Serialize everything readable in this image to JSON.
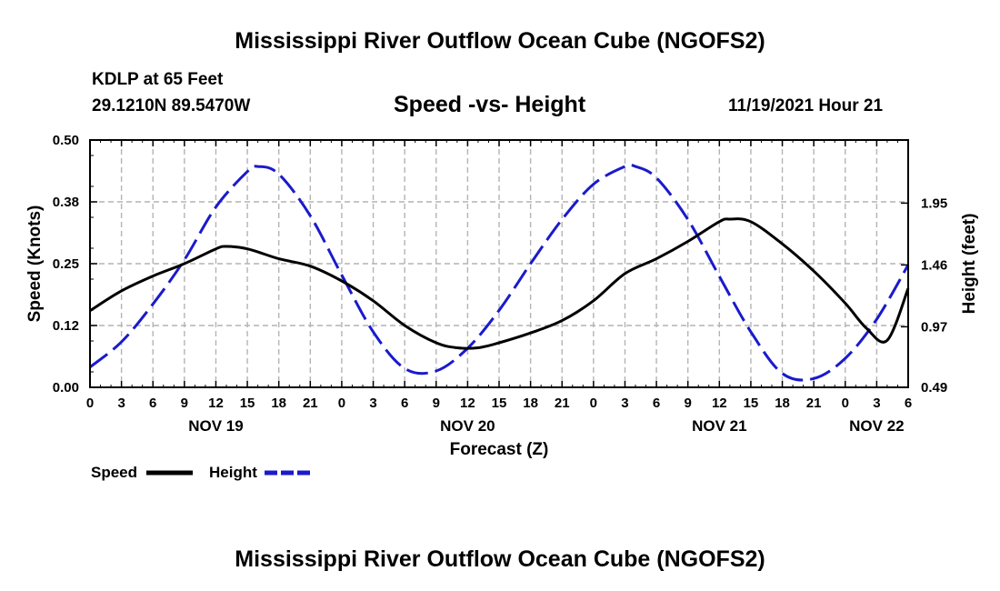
{
  "page": {
    "title": "Mississippi River Outflow Ocean Cube (NGOFS2)",
    "footer_title": "Mississippi River Outflow Ocean Cube (NGOFS2)",
    "station_line1": "KDLP at 65 Feet",
    "station_line2": "29.1210N  89.5470W",
    "subtitle": "Speed -vs- Height",
    "timestamp": "11/19/2021 Hour 21"
  },
  "chart_data": {
    "type": "line",
    "title": "Speed -vs- Height",
    "xlabel": "Forecast (Z)",
    "ylabel": "Speed (Knots)",
    "y2label": "Height (feet)",
    "x_range_hours": [
      0,
      78
    ],
    "ylim": [
      0,
      0.5
    ],
    "y2lim": [
      0.49,
      2.45
    ],
    "yticks": [
      "0.00",
      "0.12",
      "0.25",
      "0.38",
      "0.50"
    ],
    "y2ticks": [
      "0.49",
      "0.97",
      "1.46",
      "1.95"
    ],
    "xtick_labels": [
      "0",
      "3",
      "6",
      "9",
      "12",
      "15",
      "18",
      "21",
      "0",
      "3",
      "6",
      "9",
      "12",
      "15",
      "18",
      "21",
      "0",
      "3",
      "6",
      "9",
      "12",
      "15",
      "18",
      "21",
      "0",
      "3",
      "6"
    ],
    "date_labels": [
      {
        "label": "NOV 19",
        "hour": 12
      },
      {
        "label": "NOV 20",
        "hour": 36
      },
      {
        "label": "NOV 21",
        "hour": 60
      },
      {
        "label": "NOV 22",
        "hour": 75
      }
    ],
    "grid": true,
    "legend": [
      {
        "name": "Speed",
        "color": "#000000",
        "style": "solid"
      },
      {
        "name": "Height",
        "color": "#1a1acc",
        "style": "dashed"
      }
    ],
    "series": [
      {
        "name": "Speed",
        "axis": "left",
        "units": "knots",
        "color": "#000000",
        "x": [
          0,
          3,
          6,
          9,
          12,
          13,
          15,
          18,
          21,
          24,
          27,
          30,
          33,
          35,
          37,
          39,
          42,
          45,
          48,
          51,
          54,
          57,
          60,
          61,
          63,
          66,
          69,
          72,
          74,
          76,
          78
        ],
        "values": [
          0.155,
          0.195,
          0.225,
          0.25,
          0.28,
          0.285,
          0.28,
          0.26,
          0.245,
          0.215,
          0.175,
          0.125,
          0.09,
          0.08,
          0.08,
          0.09,
          0.11,
          0.135,
          0.175,
          0.23,
          0.26,
          0.295,
          0.335,
          0.34,
          0.335,
          0.29,
          0.235,
          0.17,
          0.12,
          0.095,
          0.2
        ]
      },
      {
        "name": "Height",
        "axis": "right",
        "units": "feet",
        "color": "#1a1acc",
        "x": [
          0,
          3,
          6,
          9,
          12,
          15,
          16,
          18,
          21,
          24,
          27,
          30,
          33,
          36,
          39,
          42,
          45,
          48,
          51,
          52,
          54,
          57,
          60,
          63,
          66,
          69,
          72,
          75,
          78
        ],
        "values": [
          0.65,
          0.85,
          1.15,
          1.5,
          1.92,
          2.2,
          2.24,
          2.18,
          1.85,
          1.38,
          0.93,
          0.64,
          0.62,
          0.8,
          1.1,
          1.47,
          1.82,
          2.1,
          2.24,
          2.24,
          2.15,
          1.82,
          1.37,
          0.93,
          0.6,
          0.56,
          0.72,
          1.03,
          1.46
        ]
      }
    ]
  }
}
